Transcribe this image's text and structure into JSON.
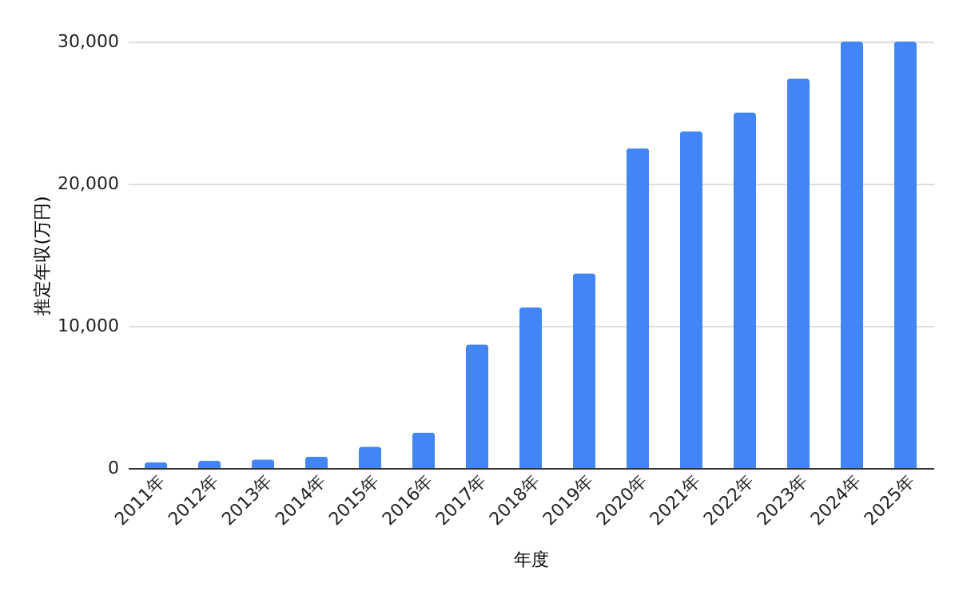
{
  "chart_data": {
    "type": "bar",
    "xlabel": "年度",
    "ylabel": "推定年収(万円)",
    "categories": [
      "2011年",
      "2012年",
      "2013年",
      "2014年",
      "2015年",
      "2016年",
      "2017年",
      "2018年",
      "2019年",
      "2020年",
      "2021年",
      "2022年",
      "2023年",
      "2024年",
      "2025年"
    ],
    "values": [
      400,
      500,
      600,
      800,
      1500,
      2500,
      8700,
      11300,
      13700,
      22500,
      23700,
      25000,
      27400,
      30000,
      30000
    ],
    "color": "#4285f4",
    "ylim": [
      0,
      30000
    ],
    "yticks": [
      0,
      {
        "value": 10000,
        "label": "10,000"
      },
      {
        "value": 20000,
        "label": "20,000"
      },
      {
        "value": 30000,
        "label": "30,000"
      }
    ],
    "grid": "y"
  }
}
